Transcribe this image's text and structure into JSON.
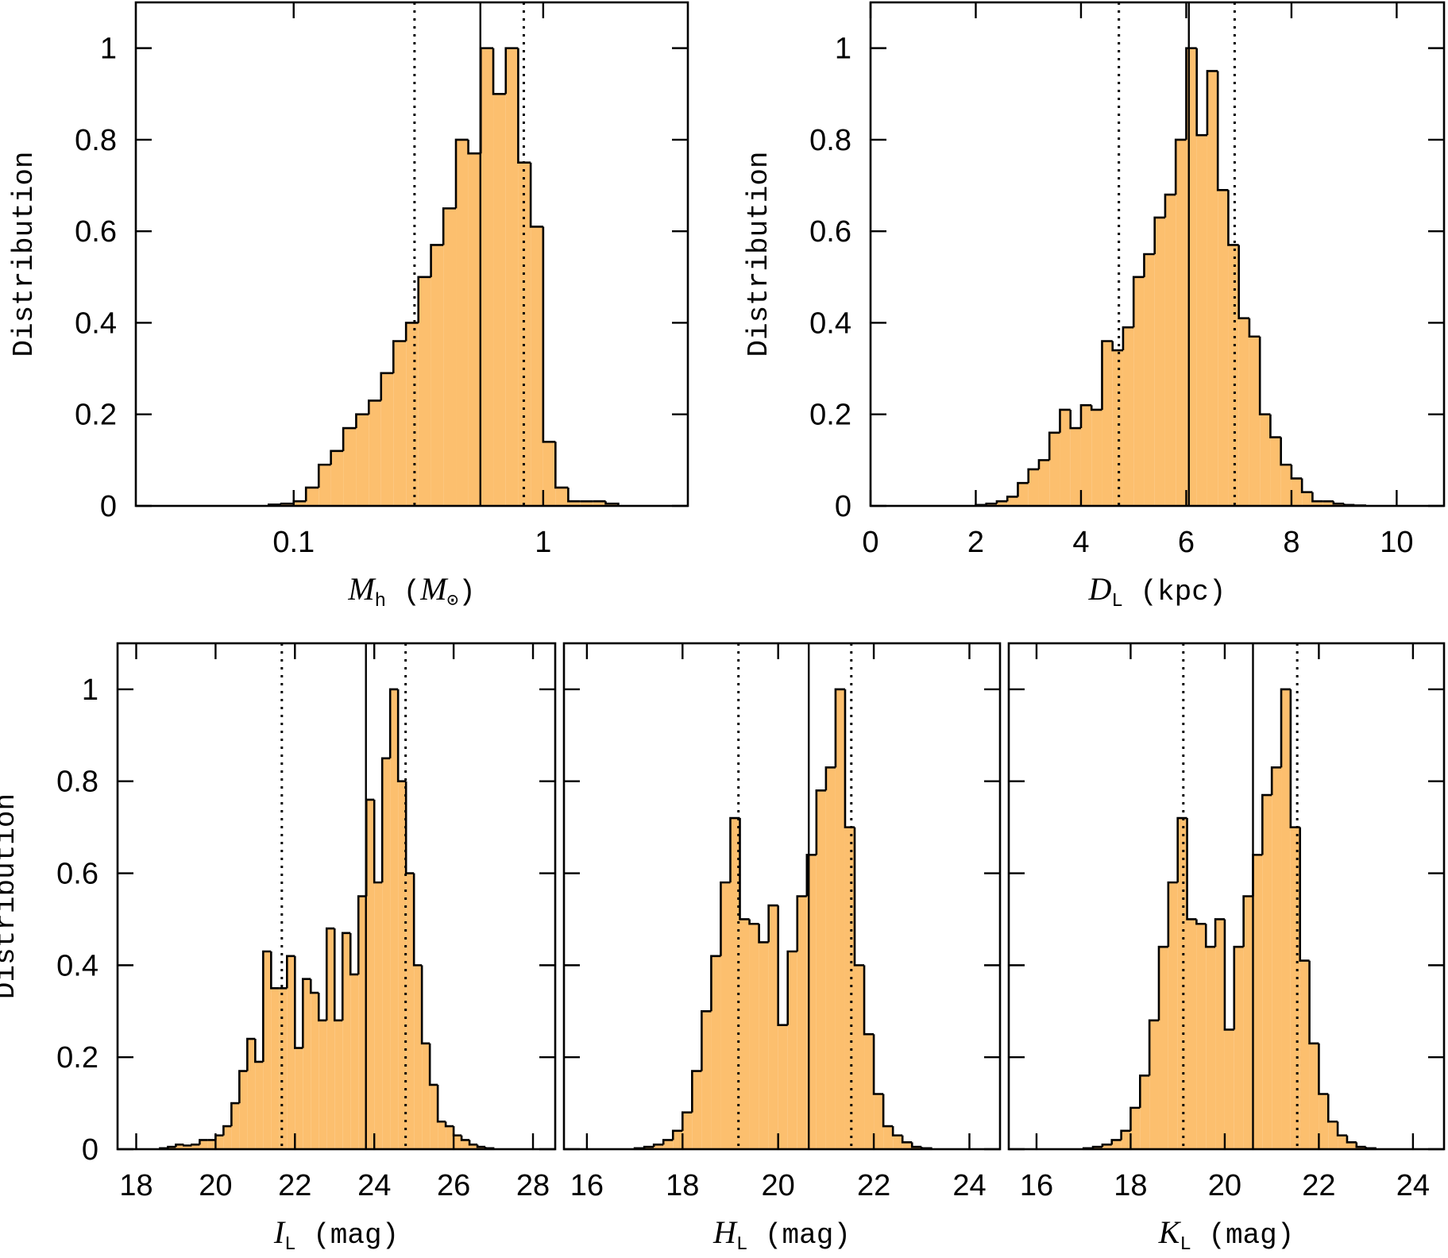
{
  "chart_data": [
    {
      "type": "histogram",
      "xscale": "log",
      "color": "#fcbf6e",
      "bins": [
        0.0794,
        0.0891,
        0.1,
        0.112,
        0.126,
        0.141,
        0.158,
        0.178,
        0.2,
        0.224,
        0.251,
        0.282,
        0.316,
        0.355,
        0.398,
        0.447,
        0.501,
        0.562,
        0.631,
        0.708,
        0.794,
        0.891,
        1,
        1.12,
        1.26,
        1.41,
        1.58,
        1.78,
        2.0
      ],
      "counts": [
        0.003,
        0.005,
        0.01,
        0.04,
        0.09,
        0.12,
        0.17,
        0.2,
        0.23,
        0.29,
        0.36,
        0.4,
        0.5,
        0.57,
        0.65,
        0.8,
        0.77,
        1.0,
        0.9,
        1.0,
        0.75,
        0.61,
        0.14,
        0.04,
        0.01,
        0.01,
        0.01,
        0.005
      ],
      "xlim": [
        0.0233,
        3.8
      ],
      "ylim": [
        0,
        1.1
      ],
      "xticks": [
        0.1,
        1
      ],
      "yticks": [
        0,
        0.2,
        0.4,
        0.6,
        0.8,
        1
      ],
      "show_ytick_labels": true,
      "vlines": [
        {
          "value": 0.305,
          "style": "dotted"
        },
        {
          "value": 0.56,
          "style": "solid"
        },
        {
          "value": 0.836,
          "style": "dotted"
        }
      ],
      "ylabel": "Distribution",
      "xlabel": [
        {
          "text": "M",
          "style": "italic"
        },
        {
          "text": "h",
          "style": "sub"
        },
        {
          "text": " (",
          "style": "normal"
        },
        {
          "text": "M",
          "style": "italic"
        },
        {
          "text": "⊙",
          "style": "sub"
        },
        {
          "text": ")",
          "style": "normal"
        }
      ]
    },
    {
      "type": "histogram",
      "xscale": "linear",
      "color": "#fcbf6e",
      "bins": [
        2,
        2.2,
        2.4,
        2.6,
        2.8,
        3,
        3.2,
        3.4,
        3.6,
        3.8,
        4,
        4.2,
        4.4,
        4.6,
        4.8,
        5,
        5.2,
        5.4,
        5.6,
        5.8,
        6,
        6.2,
        6.4,
        6.6,
        6.8,
        7,
        7.2,
        7.4,
        7.6,
        7.8,
        8,
        8.2,
        8.4,
        8.6,
        8.8,
        9,
        9.2,
        9.4
      ],
      "counts": [
        0.002,
        0.005,
        0.01,
        0.02,
        0.05,
        0.08,
        0.1,
        0.16,
        0.21,
        0.17,
        0.22,
        0.21,
        0.36,
        0.34,
        0.39,
        0.5,
        0.55,
        0.63,
        0.68,
        0.8,
        1.0,
        0.81,
        0.95,
        0.69,
        0.57,
        0.41,
        0.37,
        0.2,
        0.15,
        0.09,
        0.06,
        0.03,
        0.01,
        0.01,
        0.005,
        0.002,
        0.001
      ],
      "xlim": [
        0,
        10.9
      ],
      "ylim": [
        0,
        1.1
      ],
      "xticks": [
        0,
        2,
        4,
        6,
        8,
        10
      ],
      "yticks": [
        0,
        0.2,
        0.4,
        0.6,
        0.8,
        1
      ],
      "show_ytick_labels": true,
      "vlines": [
        {
          "value": 4.72,
          "style": "dotted"
        },
        {
          "value": 6.05,
          "style": "solid"
        },
        {
          "value": 6.92,
          "style": "dotted"
        }
      ],
      "ylabel": "Distribution",
      "xlabel": [
        {
          "text": "D",
          "style": "italic"
        },
        {
          "text": "L",
          "style": "sub"
        },
        {
          "text": " (kpc)",
          "style": "normal"
        }
      ]
    },
    {
      "type": "histogram",
      "xscale": "linear",
      "color": "#fcbf6e",
      "bins": [
        18.6,
        18.8,
        19.0,
        19.2,
        19.4,
        19.6,
        19.8,
        20.0,
        20.2,
        20.4,
        20.6,
        20.8,
        21.0,
        21.2,
        21.4,
        21.6,
        21.8,
        22.0,
        22.2,
        22.4,
        22.6,
        22.8,
        23.0,
        23.2,
        23.4,
        23.6,
        23.8,
        24.0,
        24.2,
        24.4,
        24.6,
        24.8,
        25.0,
        25.2,
        25.4,
        25.6,
        25.8,
        26.0,
        26.2,
        26.4,
        26.6,
        26.8,
        27.0
      ],
      "counts": [
        0.002,
        0.005,
        0.01,
        0.008,
        0.01,
        0.02,
        0.02,
        0.03,
        0.05,
        0.1,
        0.17,
        0.24,
        0.19,
        0.43,
        0.35,
        0.35,
        0.42,
        0.22,
        0.37,
        0.34,
        0.28,
        0.48,
        0.28,
        0.47,
        0.38,
        0.55,
        0.76,
        0.58,
        0.85,
        1.0,
        0.8,
        0.6,
        0.4,
        0.23,
        0.14,
        0.06,
        0.05,
        0.03,
        0.02,
        0.01,
        0.005,
        0.002
      ],
      "xlim": [
        17.53,
        28.56
      ],
      "ylim": [
        0,
        1.1
      ],
      "xticks": [
        18,
        20,
        22,
        24,
        26,
        28
      ],
      "yticks": [
        0,
        0.2,
        0.4,
        0.6,
        0.8,
        1
      ],
      "show_ytick_labels": true,
      "vlines": [
        {
          "value": 21.67,
          "style": "dotted"
        },
        {
          "value": 23.79,
          "style": "solid"
        },
        {
          "value": 24.79,
          "style": "dotted"
        }
      ],
      "ylabel": "Distribution",
      "xlabel": [
        {
          "text": "I",
          "style": "italic"
        },
        {
          "text": "L",
          "style": "sub"
        },
        {
          "text": " (mag)",
          "style": "normal"
        }
      ]
    },
    {
      "type": "histogram",
      "xscale": "linear",
      "color": "#fcbf6e",
      "bins": [
        17.0,
        17.2,
        17.4,
        17.6,
        17.8,
        18.0,
        18.2,
        18.4,
        18.6,
        18.8,
        19.0,
        19.2,
        19.4,
        19.6,
        19.8,
        20.0,
        20.2,
        20.4,
        20.6,
        20.8,
        21.0,
        21.2,
        21.4,
        21.6,
        21.8,
        22.0,
        22.2,
        22.4,
        22.6,
        22.8,
        23.0,
        23.2
      ],
      "counts": [
        0.002,
        0.005,
        0.01,
        0.02,
        0.04,
        0.08,
        0.17,
        0.3,
        0.42,
        0.58,
        0.72,
        0.5,
        0.49,
        0.45,
        0.53,
        0.27,
        0.43,
        0.55,
        0.64,
        0.78,
        0.83,
        1.0,
        0.7,
        0.4,
        0.25,
        0.12,
        0.05,
        0.03,
        0.015,
        0.005,
        0.002
      ],
      "xlim": [
        15.52,
        24.64
      ],
      "ylim": [
        0,
        1.1
      ],
      "xticks": [
        16,
        18,
        20,
        22,
        24
      ],
      "yticks": [
        0,
        0.2,
        0.4,
        0.6,
        0.8,
        1
      ],
      "show_ytick_labels": false,
      "vlines": [
        {
          "value": 19.17,
          "style": "dotted"
        },
        {
          "value": 20.64,
          "style": "solid"
        },
        {
          "value": 21.53,
          "style": "dotted"
        }
      ],
      "xlabel": [
        {
          "text": "H",
          "style": "italic"
        },
        {
          "text": "L",
          "style": "sub"
        },
        {
          "text": " (mag)",
          "style": "normal"
        }
      ]
    },
    {
      "type": "histogram",
      "xscale": "linear",
      "color": "#fcbf6e",
      "bins": [
        17.0,
        17.2,
        17.4,
        17.6,
        17.8,
        18.0,
        18.2,
        18.4,
        18.6,
        18.8,
        19.0,
        19.2,
        19.4,
        19.6,
        19.8,
        20.0,
        20.2,
        20.4,
        20.6,
        20.8,
        21.0,
        21.2,
        21.4,
        21.6,
        21.8,
        22.0,
        22.2,
        22.4,
        22.6,
        22.8,
        23.0,
        23.2
      ],
      "counts": [
        0.002,
        0.005,
        0.01,
        0.02,
        0.04,
        0.09,
        0.16,
        0.28,
        0.44,
        0.58,
        0.72,
        0.5,
        0.49,
        0.44,
        0.5,
        0.26,
        0.44,
        0.55,
        0.64,
        0.77,
        0.83,
        1.0,
        0.7,
        0.41,
        0.23,
        0.12,
        0.06,
        0.03,
        0.015,
        0.005,
        0.002
      ],
      "xlim": [
        15.41,
        24.66
      ],
      "ylim": [
        0,
        1.1
      ],
      "xticks": [
        16,
        18,
        20,
        22,
        24
      ],
      "yticks": [
        0,
        0.2,
        0.4,
        0.6,
        0.8,
        1
      ],
      "show_ytick_labels": false,
      "vlines": [
        {
          "value": 19.12,
          "style": "dotted"
        },
        {
          "value": 20.6,
          "style": "solid"
        },
        {
          "value": 21.54,
          "style": "dotted"
        }
      ],
      "xlabel": [
        {
          "text": "K",
          "style": "italic"
        },
        {
          "text": "L",
          "style": "sub"
        },
        {
          "text": " (mag)",
          "style": "normal"
        }
      ]
    }
  ]
}
